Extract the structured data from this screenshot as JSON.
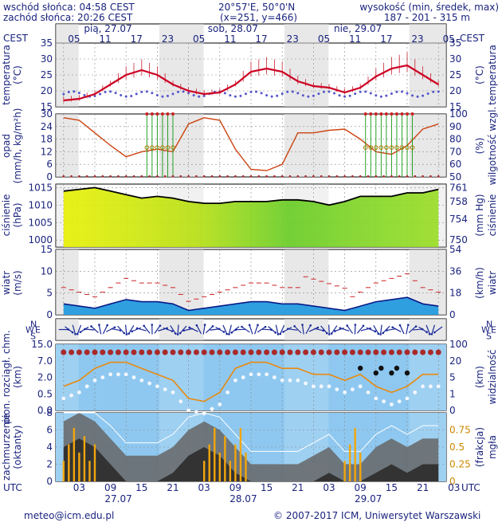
{
  "header": {
    "sunrise": "wschód słońca: 04:58 CEST",
    "sunset": "zachód słońca: 20:26 CEST",
    "coords": "20°57'E, 50°0'N",
    "grid": "(x=251,  y=466)",
    "elev_title": "wysokość (min, średek, max)",
    "elev_values": "187 - 201 - 315 m"
  },
  "timeline": {
    "cest_label": "CEST",
    "utc_label": "UTC",
    "days_top": [
      "pią, 27.07",
      "sob, 28.07",
      "nie, 29.07"
    ],
    "hours_top": [
      "05",
      "11",
      "17",
      "23",
      "05",
      "11",
      "17",
      "23",
      "05",
      "11",
      "17",
      "23",
      "05"
    ],
    "hours_bottom": [
      "03",
      "09",
      "15",
      "21",
      "03",
      "09",
      "15",
      "21",
      "03",
      "09",
      "15",
      "21",
      "03"
    ],
    "days_bottom": [
      "27.07",
      "28.07",
      "29.07"
    ]
  },
  "panels": {
    "temp": {
      "ylabel": "temperatura",
      "unit": "(°C)",
      "ticks": [
        35,
        30,
        25,
        20,
        15
      ]
    },
    "precip": {
      "ylabel": "opad",
      "unit": "(mm/h, kg/m²h)",
      "ticks": [
        30,
        24,
        18,
        12,
        6,
        0
      ],
      "r_label": "wilgotność wzgl.",
      "r_unit": "(%)",
      "r_ticks": [
        100,
        90,
        80,
        70,
        60,
        50
      ]
    },
    "pressure": {
      "ylabel": "ciśnienie",
      "unit": "(hPa)",
      "ticks": [
        1015,
        1010,
        1005,
        1000
      ],
      "r_label": "ciśnienie",
      "r_unit": "(mm Hg)",
      "r_ticks": [
        761,
        758,
        754,
        750
      ]
    },
    "wind": {
      "ylabel": "wiatr",
      "unit": "(m/s)",
      "ticks": [
        15,
        10,
        5,
        0
      ],
      "r_label": "wiatr",
      "r_unit": "(km/h)",
      "r_ticks": [
        54,
        36,
        18,
        0
      ]
    },
    "winddir": {
      "compass_left": [
        "N",
        "W",
        "E",
        "S"
      ],
      "compass_right": [
        "N",
        "W",
        "E",
        "S"
      ]
    },
    "cloudbase": {
      "ylabel": "pion. rozciągł. chm.",
      "unit": "(km)",
      "ticks": [
        "15.0",
        "7.0",
        "2.0",
        "0.5",
        "0.0"
      ],
      "r_label": "widzialność",
      "r_unit": "(km)",
      "r_ticks": [
        100,
        20,
        5,
        1,
        0
      ]
    },
    "clouds": {
      "ylabel": "zachmurzenie",
      "unit": "(oktanty)",
      "ticks": [
        8,
        6,
        4,
        2,
        0
      ],
      "r_label": "mgła",
      "r_unit": "(frakcja)",
      "r_ticks": [
        "0.75",
        "0.5",
        "0.25",
        "0"
      ]
    }
  },
  "footer": {
    "email": "meteo@icm.edu.pl",
    "copyright": "© 2007-2017 ICM, Uniwersytet Warszawski"
  },
  "colors": {
    "temp_line": "#cc0022",
    "rh_line": "#cc4411",
    "pressure_fill_high": "#e8f000",
    "pressure_fill_low": "#66cc22",
    "wind_fill": "#1144cc",
    "sky": "#8ec8f0",
    "night_band": "#d8d8d8"
  },
  "chart_data": {
    "type": "line",
    "x_hours_utc": [
      0,
      3,
      6,
      9,
      12,
      15,
      18,
      21,
      24,
      27,
      30,
      33,
      36,
      39,
      42,
      45,
      48,
      51,
      54,
      57,
      60,
      63,
      66,
      69,
      72
    ],
    "series": [
      {
        "name": "temperatura",
        "unit": "°C",
        "values": [
          17,
          17.5,
          19,
          22,
          25,
          26.5,
          25,
          22,
          20,
          19,
          19.5,
          22,
          26,
          27,
          26,
          23,
          21.5,
          21,
          19.5,
          21,
          24.5,
          27,
          28,
          25,
          22
        ]
      },
      {
        "name": "wilgotność wzgl.",
        "unit": "%",
        "values": [
          97,
          95,
          85,
          75,
          66,
          70,
          72,
          70,
          92,
          97,
          95,
          72,
          56,
          55,
          60,
          85,
          85,
          87,
          88,
          80,
          70,
          68,
          75,
          88,
          92
        ]
      },
      {
        "name": "ciśnienie",
        "unit": "hPa",
        "values": [
          1014,
          1014.5,
          1015,
          1014,
          1013,
          1012,
          1012.5,
          1012,
          1011,
          1010.5,
          1010.5,
          1011,
          1011,
          1011,
          1011.5,
          1011.5,
          1011,
          1010,
          1011,
          1012.5,
          1012.5,
          1012.5,
          1013.5,
          1013.5,
          1014.5
        ]
      },
      {
        "name": "wiatr",
        "unit": "m/s",
        "values": [
          2.5,
          2,
          1.5,
          2.5,
          3.5,
          3,
          3,
          2.5,
          1,
          1.5,
          2,
          2.5,
          3,
          3,
          2.5,
          2.5,
          2,
          1.5,
          1,
          2,
          3,
          3.5,
          4,
          2.5,
          2
        ]
      },
      {
        "name": "widzialność",
        "unit": "km",
        "values": [
          3,
          4,
          6,
          7,
          7,
          6,
          5,
          4,
          1,
          0.5,
          2,
          6,
          7,
          7,
          6,
          6,
          5,
          5,
          4,
          5,
          3,
          2,
          3,
          5,
          5
        ]
      },
      {
        "name": "zachmurzenie",
        "unit": "oktanty",
        "values": [
          7,
          8,
          7,
          5,
          3,
          3,
          3,
          4,
          6,
          7,
          6,
          4,
          2,
          2,
          2,
          2,
          3,
          4,
          2,
          2,
          4,
          5,
          4,
          5,
          5
        ]
      }
    ],
    "xlabel": "UTC",
    "ylim_temp": [
      15,
      35
    ],
    "ylim_precip": [
      0,
      30
    ],
    "ylim_pressure": [
      998,
      1016
    ],
    "ylim_wind": [
      0,
      15
    ],
    "legend": "none",
    "grid": true
  }
}
